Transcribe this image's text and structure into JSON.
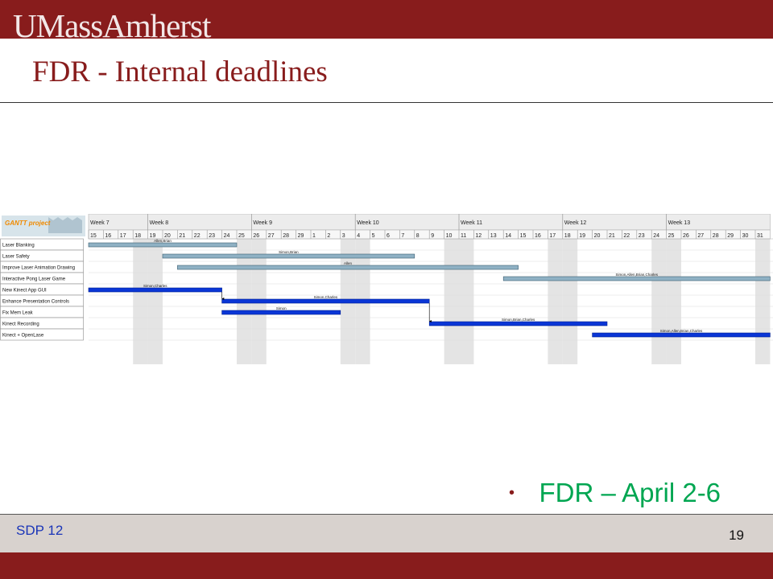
{
  "header": {
    "logo_text": "UMassAmherst",
    "brand_color": "#881c1c"
  },
  "slide": {
    "title": "FDR - Internal deadlines"
  },
  "gantt": {
    "logo_label": "GANTT project",
    "weeks": [
      "Week 7",
      "Week 8",
      "Week 9",
      "Week 10",
      "Week 11",
      "Week 12",
      "Week 13"
    ],
    "days": [
      "15",
      "16",
      "17",
      "18",
      "19",
      "20",
      "21",
      "22",
      "23",
      "24",
      "25",
      "26",
      "27",
      "28",
      "29",
      "1",
      "2",
      "3",
      "4",
      "5",
      "6",
      "7",
      "8",
      "9",
      "10",
      "11",
      "12",
      "13",
      "14",
      "15",
      "16",
      "17",
      "18",
      "19",
      "20",
      "21",
      "22",
      "23",
      "24",
      "25",
      "26",
      "27",
      "28",
      "29",
      "30",
      "31"
    ],
    "weekend_day_indices": [
      3,
      4,
      10,
      11,
      17,
      18,
      24,
      25,
      31,
      32,
      38,
      39,
      45
    ],
    "tasks": [
      {
        "name": "Laser Blanking",
        "start": 0,
        "end": 10,
        "resources": "Allen,Brian",
        "style": "light"
      },
      {
        "name": "Laser Safety",
        "start": 5,
        "end": 22,
        "resources": "Simon,Brian",
        "style": "light"
      },
      {
        "name": "Improve Laser Animation Drawing",
        "start": 6,
        "end": 29,
        "resources": "Allen",
        "style": "light"
      },
      {
        "name": "Interactive Pong Laser Game",
        "start": 28,
        "end": 46,
        "resources": "Simon,Allen,Brian,Charles",
        "style": "light"
      },
      {
        "name": "New Kinect App GUI",
        "start": 0,
        "end": 9,
        "resources": "Simon,Charles",
        "style": "dark"
      },
      {
        "name": "Enhance Presentation Controls",
        "start": 9,
        "end": 23,
        "resources": "Simon,Charles",
        "style": "dark"
      },
      {
        "name": "Fix Mem Leak",
        "start": 9,
        "end": 17,
        "resources": "Simon",
        "style": "dark"
      },
      {
        "name": "Kinect Recording",
        "start": 23,
        "end": 35,
        "resources": "Simon,Brian,Charles",
        "style": "dark"
      },
      {
        "name": "Kinect + OpenLase",
        "start": 34,
        "end": 46,
        "resources": "Simon,Allen,Brian,Charles",
        "style": "dark"
      }
    ],
    "dependencies": [
      {
        "from": 4,
        "to": 5
      },
      {
        "from": 5,
        "to": 7
      }
    ]
  },
  "bullet": {
    "text": "FDR – April 2-6",
    "color": "#00a651"
  },
  "footer": {
    "left_text": "SDP 12",
    "page_number": "19"
  }
}
